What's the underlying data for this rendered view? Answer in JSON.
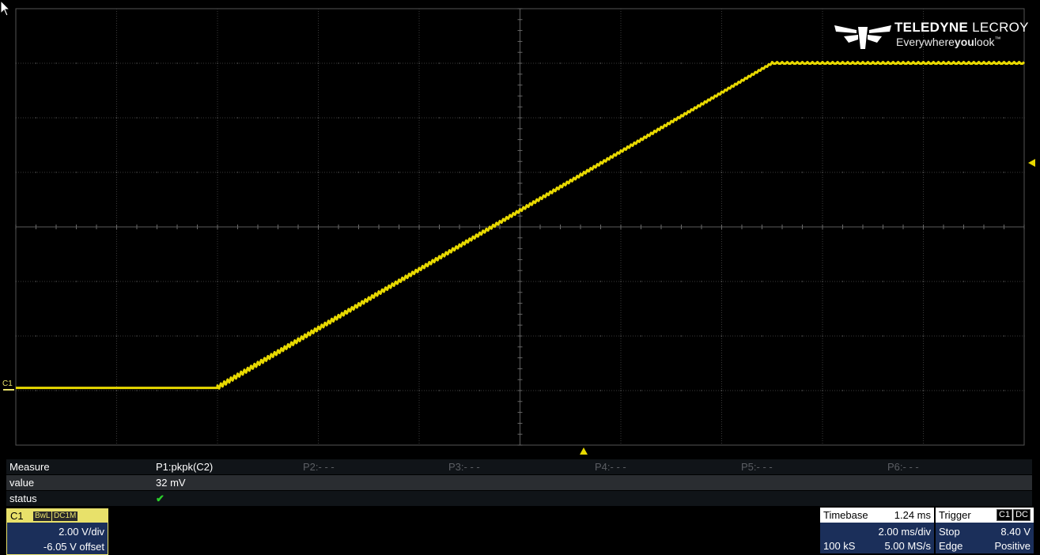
{
  "logo": {
    "brand_bold": "TELEDYNE",
    "brand_thin": " LECROY",
    "tag_pre": "Everywhere",
    "tag_bold": "you",
    "tag_post": "look",
    "tm": "™"
  },
  "channel_marker": "C1",
  "colors": {
    "trace": "#e8d900",
    "grid": "#3a3a3a",
    "c1": "#e8e16a",
    "panel": "#1b2f5a"
  },
  "trace": {
    "v_per_div": 2.0,
    "offset_v": -6.05,
    "ms_per_div": 2.0,
    "x_divs": 10,
    "y_divs": 8,
    "points": [
      {
        "div_x": 0.0,
        "div_y": -2.95
      },
      {
        "div_x": 2.0,
        "div_y": -2.95
      },
      {
        "div_x": 7.5,
        "div_y": 3.0
      },
      {
        "div_x": 10.0,
        "div_y": 3.0
      }
    ]
  },
  "measure": {
    "header_label": "Measure",
    "params": [
      "P1:pkpk(C2)",
      "P2:- - -",
      "P3:- - -",
      "P4:- - -",
      "P5:- - -",
      "P6:- - -"
    ],
    "value_label": "value",
    "value": "32 mV",
    "status_label": "status",
    "status_icon": "check-icon",
    "status_symbol": "✔"
  },
  "c1": {
    "name": "C1",
    "tags": [
      "BwL",
      "DC1M"
    ],
    "vdiv": "2.00 V/div",
    "offset": "-6.05 V offset"
  },
  "timebase": {
    "label": "Timebase",
    "delay": "1.24 ms",
    "tdiv": "2.00 ms/div",
    "samples": "100 kS",
    "rate": "5.00 MS/s"
  },
  "trigger": {
    "label": "Trigger",
    "source": "C1",
    "coupling": "DC",
    "mode": "Stop",
    "level": "8.40 V",
    "type": "Edge",
    "slope": "Positive"
  }
}
